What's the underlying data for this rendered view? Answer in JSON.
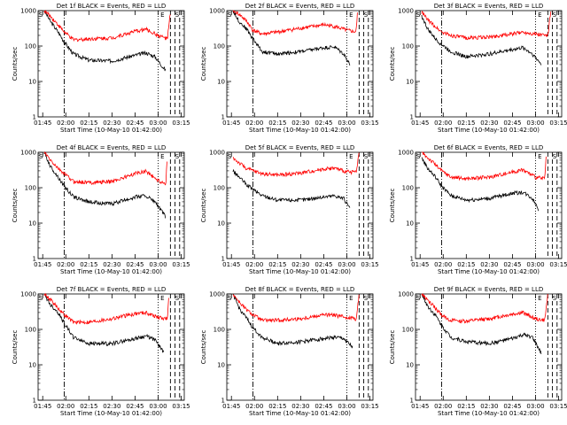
{
  "figure": {
    "ylabel": "Counts/sec",
    "xlabel": "Start Time (10-May-10 01:42:00)"
  },
  "chart_data": [
    {
      "type": "line",
      "title": "Det 1f BLACK = Events, RED = LLD"
    },
    {
      "type": "line",
      "title": "Det 2f BLACK = Events, RED = LLD"
    },
    {
      "type": "line",
      "title": "Det 3f BLACK = Events, RED = LLD"
    },
    {
      "type": "line",
      "title": "Det 4f BLACK = Events, RED = LLD"
    },
    {
      "type": "line",
      "title": "Det 5f BLACK = Events, RED = LLD"
    },
    {
      "type": "line",
      "title": "Det 6f BLACK = Events, RED = LLD"
    },
    {
      "type": "line",
      "title": "Det 7f BLACK = Events, RED = LLD"
    },
    {
      "type": "line",
      "title": "Det 8f BLACK = Events, RED = LLD"
    },
    {
      "type": "line",
      "title": "Det 9f BLACK = Events, RED = LLD"
    }
  ],
  "shared": {
    "x_ticks": [
      "01:45",
      "02:00",
      "02:15",
      "02:30",
      "02:45",
      "03:00",
      "03:15"
    ],
    "x_tick_minutes": [
      105,
      120,
      135,
      150,
      165,
      180,
      195
    ],
    "xlim_minutes": [
      102,
      197
    ],
    "y_scale": "log",
    "y_ticks": [
      "1",
      "10",
      "100",
      "1000"
    ],
    "y_tick_values": [
      1,
      10,
      100,
      1000
    ],
    "ylim": [
      1,
      1000
    ],
    "series": [
      {
        "name": "Events",
        "color": "#000000"
      },
      {
        "name": "LLD",
        "color": "#ff0000"
      }
    ],
    "marker_labels": [
      "S",
      "E",
      "S"
    ],
    "marker_minutes": [
      102.5,
      181.5,
      191
    ],
    "vlines_dashdot": [
      119
    ],
    "vlines_dotted": [
      180
    ],
    "vlines_dashed": [
      188,
      191,
      194
    ]
  },
  "curves": [
    {
      "events": [
        [
          106,
          1000
        ],
        [
          110,
          500
        ],
        [
          115,
          250
        ],
        [
          119,
          130
        ],
        [
          125,
          60
        ],
        [
          135,
          40
        ],
        [
          150,
          38
        ],
        [
          165,
          55
        ],
        [
          172,
          65
        ],
        [
          178,
          50
        ],
        [
          185,
          20
        ]
      ],
      "lld": [
        [
          106,
          1000
        ],
        [
          110,
          700
        ],
        [
          115,
          400
        ],
        [
          119,
          250
        ],
        [
          125,
          150
        ],
        [
          135,
          160
        ],
        [
          150,
          170
        ],
        [
          165,
          260
        ],
        [
          172,
          300
        ],
        [
          180,
          200
        ],
        [
          186,
          160
        ],
        [
          188,
          900
        ]
      ]
    },
    {
      "events": [
        [
          106,
          1000
        ],
        [
          110,
          500
        ],
        [
          115,
          300
        ],
        [
          119,
          160
        ],
        [
          125,
          70
        ],
        [
          135,
          60
        ],
        [
          150,
          70
        ],
        [
          165,
          90
        ],
        [
          172,
          95
        ],
        [
          178,
          60
        ],
        [
          182,
          30
        ]
      ],
      "lld": [
        [
          106,
          1000
        ],
        [
          110,
          800
        ],
        [
          115,
          500
        ],
        [
          119,
          280
        ],
        [
          125,
          220
        ],
        [
          135,
          250
        ],
        [
          150,
          320
        ],
        [
          165,
          400
        ],
        [
          172,
          360
        ],
        [
          180,
          280
        ],
        [
          186,
          250
        ],
        [
          187,
          1000
        ]
      ]
    },
    {
      "events": [
        [
          106,
          700
        ],
        [
          110,
          300
        ],
        [
          115,
          160
        ],
        [
          119,
          110
        ],
        [
          125,
          70
        ],
        [
          135,
          50
        ],
        [
          150,
          60
        ],
        [
          165,
          80
        ],
        [
          172,
          90
        ],
        [
          178,
          60
        ],
        [
          184,
          30
        ]
      ],
      "lld": [
        [
          106,
          900
        ],
        [
          110,
          550
        ],
        [
          115,
          350
        ],
        [
          119,
          250
        ],
        [
          125,
          200
        ],
        [
          135,
          170
        ],
        [
          150,
          180
        ],
        [
          165,
          220
        ],
        [
          172,
          250
        ],
        [
          180,
          220
        ],
        [
          188,
          200
        ],
        [
          190,
          1000
        ]
      ]
    },
    {
      "events": [
        [
          106,
          1000
        ],
        [
          110,
          400
        ],
        [
          115,
          200
        ],
        [
          119,
          110
        ],
        [
          125,
          55
        ],
        [
          135,
          40
        ],
        [
          150,
          35
        ],
        [
          165,
          55
        ],
        [
          172,
          60
        ],
        [
          178,
          40
        ],
        [
          185,
          15
        ]
      ],
      "lld": [
        [
          106,
          1000
        ],
        [
          110,
          600
        ],
        [
          115,
          350
        ],
        [
          119,
          250
        ],
        [
          125,
          150
        ],
        [
          135,
          140
        ],
        [
          150,
          150
        ],
        [
          165,
          250
        ],
        [
          172,
          300
        ],
        [
          180,
          160
        ],
        [
          185,
          130
        ],
        [
          186,
          900
        ]
      ]
    },
    {
      "events": [
        [
          106,
          300
        ],
        [
          110,
          200
        ],
        [
          115,
          120
        ],
        [
          119,
          90
        ],
        [
          125,
          60
        ],
        [
          135,
          45
        ],
        [
          150,
          45
        ],
        [
          165,
          55
        ],
        [
          172,
          60
        ],
        [
          178,
          50
        ],
        [
          182,
          25
        ]
      ],
      "lld": [
        [
          106,
          700
        ],
        [
          110,
          500
        ],
        [
          115,
          350
        ],
        [
          119,
          300
        ],
        [
          125,
          250
        ],
        [
          135,
          230
        ],
        [
          150,
          260
        ],
        [
          165,
          340
        ],
        [
          172,
          360
        ],
        [
          180,
          280
        ],
        [
          186,
          280
        ],
        [
          188,
          1000
        ]
      ]
    },
    {
      "events": [
        [
          106,
          700
        ],
        [
          110,
          350
        ],
        [
          115,
          200
        ],
        [
          119,
          110
        ],
        [
          125,
          60
        ],
        [
          135,
          45
        ],
        [
          150,
          50
        ],
        [
          165,
          70
        ],
        [
          172,
          75
        ],
        [
          178,
          50
        ],
        [
          182,
          25
        ]
      ],
      "lld": [
        [
          106,
          1000
        ],
        [
          110,
          700
        ],
        [
          115,
          450
        ],
        [
          119,
          300
        ],
        [
          125,
          200
        ],
        [
          135,
          180
        ],
        [
          150,
          200
        ],
        [
          165,
          280
        ],
        [
          172,
          320
        ],
        [
          180,
          200
        ],
        [
          186,
          180
        ],
        [
          187,
          1000
        ]
      ]
    },
    {
      "events": [
        [
          106,
          1000
        ],
        [
          110,
          500
        ],
        [
          115,
          300
        ],
        [
          119,
          150
        ],
        [
          125,
          60
        ],
        [
          135,
          40
        ],
        [
          150,
          40
        ],
        [
          165,
          55
        ],
        [
          172,
          65
        ],
        [
          178,
          50
        ],
        [
          184,
          22
        ]
      ],
      "lld": [
        [
          106,
          1000
        ],
        [
          110,
          700
        ],
        [
          115,
          400
        ],
        [
          119,
          260
        ],
        [
          125,
          160
        ],
        [
          135,
          160
        ],
        [
          150,
          200
        ],
        [
          165,
          280
        ],
        [
          172,
          300
        ],
        [
          180,
          220
        ],
        [
          186,
          200
        ],
        [
          187,
          900
        ]
      ]
    },
    {
      "events": [
        [
          106,
          1000
        ],
        [
          110,
          400
        ],
        [
          115,
          200
        ],
        [
          119,
          110
        ],
        [
          125,
          60
        ],
        [
          135,
          40
        ],
        [
          150,
          45
        ],
        [
          165,
          55
        ],
        [
          172,
          60
        ],
        [
          178,
          55
        ],
        [
          184,
          30
        ]
      ],
      "lld": [
        [
          106,
          1000
        ],
        [
          110,
          600
        ],
        [
          115,
          350
        ],
        [
          119,
          260
        ],
        [
          125,
          180
        ],
        [
          135,
          180
        ],
        [
          150,
          200
        ],
        [
          165,
          260
        ],
        [
          172,
          250
        ],
        [
          180,
          220
        ],
        [
          186,
          200
        ],
        [
          188,
          1000
        ]
      ]
    },
    {
      "events": [
        [
          106,
          1000
        ],
        [
          110,
          450
        ],
        [
          115,
          250
        ],
        [
          119,
          130
        ],
        [
          125,
          60
        ],
        [
          135,
          45
        ],
        [
          150,
          40
        ],
        [
          165,
          55
        ],
        [
          172,
          70
        ],
        [
          178,
          60
        ],
        [
          184,
          20
        ]
      ],
      "lld": [
        [
          106,
          1000
        ],
        [
          110,
          650
        ],
        [
          115,
          400
        ],
        [
          119,
          250
        ],
        [
          125,
          180
        ],
        [
          135,
          170
        ],
        [
          150,
          200
        ],
        [
          165,
          270
        ],
        [
          172,
          300
        ],
        [
          180,
          200
        ],
        [
          186,
          180
        ],
        [
          188,
          1000
        ]
      ]
    }
  ]
}
